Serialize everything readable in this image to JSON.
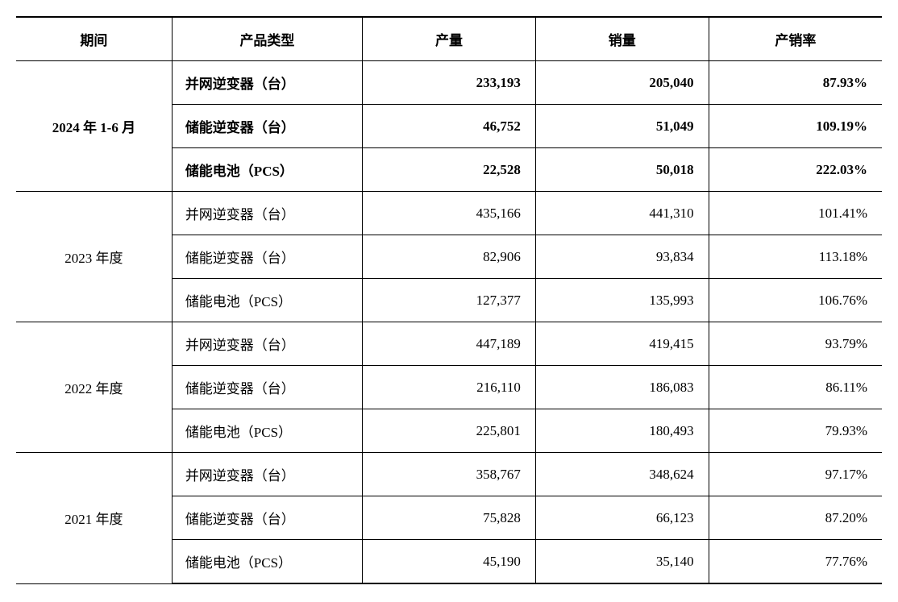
{
  "table": {
    "columns": [
      "期间",
      "产品类型",
      "产量",
      "销量",
      "产销率"
    ],
    "col_widths_pct": [
      18,
      22,
      20,
      20,
      20
    ],
    "header_fontsize": 17,
    "cell_fontsize": 17,
    "border_color": "#000000",
    "background_color": "#ffffff",
    "text_color": "#000000",
    "groups": [
      {
        "period": "2024 年 1-6 月",
        "bold": true,
        "rows": [
          {
            "product": "并网逆变器（台）",
            "production": "233,193",
            "sales": "205,040",
            "ratio": "87.93%"
          },
          {
            "product": "储能逆变器（台）",
            "production": "46,752",
            "sales": "51,049",
            "ratio": "109.19%"
          },
          {
            "product": "储能电池（PCS）",
            "production": "22,528",
            "sales": "50,018",
            "ratio": "222.03%"
          }
        ]
      },
      {
        "period": "2023 年度",
        "bold": false,
        "rows": [
          {
            "product": "并网逆变器（台）",
            "production": "435,166",
            "sales": "441,310",
            "ratio": "101.41%"
          },
          {
            "product": "储能逆变器（台）",
            "production": "82,906",
            "sales": "93,834",
            "ratio": "113.18%"
          },
          {
            "product": "储能电池（PCS）",
            "production": "127,377",
            "sales": "135,993",
            "ratio": "106.76%"
          }
        ]
      },
      {
        "period": "2022 年度",
        "bold": false,
        "rows": [
          {
            "product": "并网逆变器（台）",
            "production": "447,189",
            "sales": "419,415",
            "ratio": "93.79%"
          },
          {
            "product": "储能逆变器（台）",
            "production": "216,110",
            "sales": "186,083",
            "ratio": "86.11%"
          },
          {
            "product": "储能电池（PCS）",
            "production": "225,801",
            "sales": "180,493",
            "ratio": "79.93%"
          }
        ]
      },
      {
        "period": "2021 年度",
        "bold": false,
        "rows": [
          {
            "product": "并网逆变器（台）",
            "production": "358,767",
            "sales": "348,624",
            "ratio": "97.17%"
          },
          {
            "product": "储能逆变器（台）",
            "production": "75,828",
            "sales": "66,123",
            "ratio": "87.20%"
          },
          {
            "product": "储能电池（PCS）",
            "production": "45,190",
            "sales": "35,140",
            "ratio": "77.76%"
          }
        ]
      }
    ]
  }
}
